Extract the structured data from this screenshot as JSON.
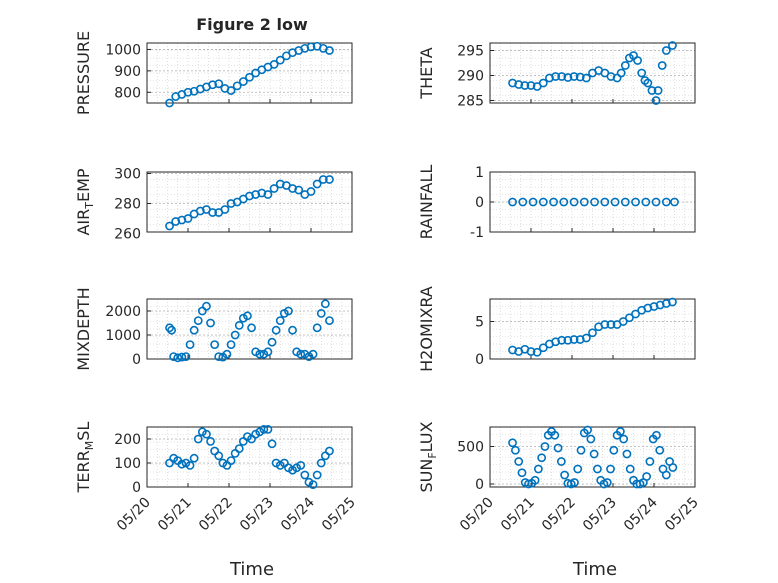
{
  "figure": {
    "title": "Figure 2 low",
    "xlabel": "Time",
    "x_ticks": [
      "05/20",
      "05/21",
      "05/22",
      "05/23",
      "05/24",
      "05/25"
    ],
    "marker_color": "#0072BD",
    "grid": "dotted minor + major"
  },
  "chart_data": [
    {
      "type": "scatter",
      "ylabel": "PRESSURE",
      "xlim": [
        "05/20",
        "05/25"
      ],
      "ylim": [
        750,
        1030
      ],
      "yticks": [
        800,
        900,
        1000
      ],
      "x": [
        0.55,
        0.7,
        0.85,
        1.0,
        1.15,
        1.3,
        1.45,
        1.6,
        1.75,
        1.9,
        2.05,
        2.2,
        2.35,
        2.5,
        2.65,
        2.8,
        2.95,
        3.1,
        3.25,
        3.4,
        3.55,
        3.7,
        3.85,
        4.0,
        4.15,
        4.3,
        4.45
      ],
      "y": [
        750,
        780,
        790,
        800,
        805,
        815,
        825,
        835,
        840,
        818,
        808,
        830,
        850,
        870,
        890,
        905,
        918,
        930,
        950,
        970,
        985,
        995,
        1005,
        1012,
        1015,
        1005,
        995
      ]
    },
    {
      "type": "scatter",
      "ylabel": "THETA",
      "xlim": [
        "05/20",
        "05/25"
      ],
      "ylim": [
        284.5,
        296.5
      ],
      "yticks": [
        285,
        290,
        295
      ],
      "x": [
        0.55,
        0.7,
        0.85,
        1.0,
        1.15,
        1.3,
        1.45,
        1.6,
        1.75,
        1.9,
        2.05,
        2.2,
        2.35,
        2.5,
        2.65,
        2.8,
        2.95,
        3.1,
        3.2,
        3.3,
        3.4,
        3.5,
        3.6,
        3.7,
        3.78,
        3.85,
        3.95,
        4.05,
        4.1,
        4.2,
        4.3,
        4.45
      ],
      "y": [
        288.5,
        288.2,
        288.0,
        288.0,
        287.8,
        288.5,
        289.5,
        289.8,
        289.8,
        289.6,
        289.8,
        289.7,
        289.5,
        290.5,
        291.0,
        290.5,
        289.8,
        289.5,
        290.5,
        292.0,
        293.5,
        294.0,
        293.0,
        290.5,
        289.0,
        288.5,
        287.0,
        285.0,
        287.0,
        292.0,
        295.0,
        296.0
      ]
    },
    {
      "type": "scatter",
      "ylabel": "AIR_TEMP",
      "xlim": [
        "05/20",
        "05/25"
      ],
      "ylim": [
        261,
        301
      ],
      "yticks": [
        260,
        280,
        300
      ],
      "x": [
        0.55,
        0.7,
        0.85,
        1.0,
        1.15,
        1.3,
        1.45,
        1.6,
        1.75,
        1.9,
        2.05,
        2.2,
        2.35,
        2.5,
        2.65,
        2.8,
        2.95,
        3.1,
        3.25,
        3.4,
        3.55,
        3.7,
        3.85,
        4.0,
        4.15,
        4.3,
        4.45
      ],
      "y": [
        265,
        268,
        269,
        270,
        273,
        275,
        276,
        274,
        274,
        276,
        280,
        281,
        283,
        285,
        286,
        287,
        286,
        290,
        293,
        292,
        290,
        289,
        286,
        288,
        293,
        296,
        296
      ]
    },
    {
      "type": "scatter",
      "ylabel": "RAINFALL",
      "xlim": [
        "05/20",
        "05/25"
      ],
      "ylim": [
        -1,
        1
      ],
      "yticks": [
        -1,
        0,
        1
      ],
      "x": [
        0.55,
        0.8,
        1.05,
        1.3,
        1.55,
        1.8,
        2.05,
        2.3,
        2.55,
        2.8,
        3.05,
        3.3,
        3.55,
        3.8,
        4.05,
        4.3,
        4.5
      ],
      "y": [
        0,
        0,
        0,
        0,
        0,
        0,
        0,
        0,
        0,
        0,
        0,
        0,
        0,
        0,
        0,
        0,
        0
      ]
    },
    {
      "type": "scatter",
      "ylabel": "MIXDEPTH",
      "xlim": [
        "05/20",
        "05/25"
      ],
      "ylim": [
        0,
        2500
      ],
      "yticks": [
        0,
        1000,
        2000
      ],
      "x": [
        0.55,
        0.6,
        0.65,
        0.75,
        0.85,
        0.95,
        1.05,
        1.15,
        1.25,
        1.35,
        1.45,
        1.55,
        1.65,
        1.75,
        1.85,
        1.95,
        2.05,
        2.15,
        2.25,
        2.35,
        2.45,
        2.55,
        2.65,
        2.75,
        2.85,
        2.95,
        3.05,
        3.15,
        3.25,
        3.35,
        3.45,
        3.55,
        3.65,
        3.75,
        3.85,
        3.95,
        4.05,
        4.15,
        4.25,
        4.35,
        4.45
      ],
      "y": [
        1300,
        1200,
        100,
        50,
        80,
        100,
        600,
        1200,
        1600,
        2000,
        2200,
        1500,
        600,
        100,
        80,
        200,
        600,
        1000,
        1400,
        1700,
        1800,
        1300,
        300,
        200,
        200,
        300,
        700,
        1200,
        1600,
        1900,
        2000,
        1200,
        300,
        200,
        200,
        100,
        200,
        1300,
        1900,
        2300,
        1600
      ]
    },
    {
      "type": "scatter",
      "ylabel": "H2OMIXRA",
      "xlim": [
        "05/20",
        "05/25"
      ],
      "ylim": [
        0,
        8
      ],
      "yticks": [
        0,
        5
      ],
      "x": [
        0.55,
        0.7,
        0.85,
        1.0,
        1.15,
        1.3,
        1.45,
        1.6,
        1.75,
        1.9,
        2.05,
        2.2,
        2.35,
        2.5,
        2.65,
        2.8,
        2.95,
        3.1,
        3.25,
        3.4,
        3.55,
        3.7,
        3.85,
        4.0,
        4.15,
        4.3,
        4.45
      ],
      "y": [
        1.2,
        1.0,
        1.3,
        1.0,
        0.9,
        1.5,
        2.0,
        2.3,
        2.5,
        2.5,
        2.6,
        2.6,
        2.8,
        3.5,
        4.3,
        4.6,
        4.6,
        4.6,
        5.0,
        5.5,
        6.0,
        6.5,
        6.8,
        7.0,
        7.2,
        7.4,
        7.6
      ]
    },
    {
      "type": "scatter",
      "ylabel": "TERR_MSL",
      "xlim": [
        "05/20",
        "05/25"
      ],
      "ylim": [
        0,
        250
      ],
      "yticks": [
        0,
        100,
        200
      ],
      "x": [
        0.55,
        0.65,
        0.75,
        0.85,
        0.95,
        1.05,
        1.15,
        1.25,
        1.35,
        1.45,
        1.55,
        1.65,
        1.75,
        1.85,
        1.95,
        2.05,
        2.15,
        2.25,
        2.35,
        2.45,
        2.55,
        2.65,
        2.75,
        2.85,
        2.95,
        3.05,
        3.15,
        3.25,
        3.35,
        3.45,
        3.55,
        3.65,
        3.75,
        3.85,
        3.95,
        4.05,
        4.15,
        4.25,
        4.35,
        4.45
      ],
      "y": [
        100,
        120,
        110,
        95,
        100,
        90,
        120,
        200,
        230,
        220,
        190,
        150,
        130,
        100,
        90,
        110,
        140,
        160,
        190,
        210,
        200,
        220,
        230,
        240,
        240,
        180,
        100,
        90,
        100,
        80,
        70,
        80,
        90,
        50,
        20,
        10,
        50,
        100,
        130,
        150
      ]
    },
    {
      "type": "scatter",
      "ylabel": "SUN_FLUX",
      "xlim": [
        "05/20",
        "05/25"
      ],
      "ylim": [
        -40,
        760
      ],
      "yticks": [
        0,
        500
      ],
      "x": [
        0.55,
        0.62,
        0.7,
        0.78,
        0.86,
        0.94,
        1.02,
        1.1,
        1.18,
        1.26,
        1.34,
        1.42,
        1.5,
        1.58,
        1.66,
        1.74,
        1.82,
        1.9,
        1.98,
        2.06,
        2.14,
        2.22,
        2.3,
        2.38,
        2.46,
        2.54,
        2.62,
        2.7,
        2.78,
        2.86,
        2.94,
        3.02,
        3.1,
        3.18,
        3.26,
        3.34,
        3.42,
        3.5,
        3.58,
        3.66,
        3.74,
        3.82,
        3.9,
        3.98,
        4.06,
        4.14,
        4.22,
        4.3,
        4.38,
        4.46
      ],
      "y": [
        550,
        450,
        300,
        150,
        20,
        0,
        10,
        50,
        200,
        350,
        500,
        650,
        700,
        650,
        480,
        300,
        120,
        10,
        0,
        20,
        200,
        450,
        680,
        720,
        600,
        400,
        200,
        50,
        0,
        20,
        200,
        450,
        650,
        700,
        600,
        400,
        200,
        50,
        0,
        0,
        20,
        100,
        300,
        600,
        650,
        450,
        200,
        120,
        300,
        220
      ]
    }
  ]
}
